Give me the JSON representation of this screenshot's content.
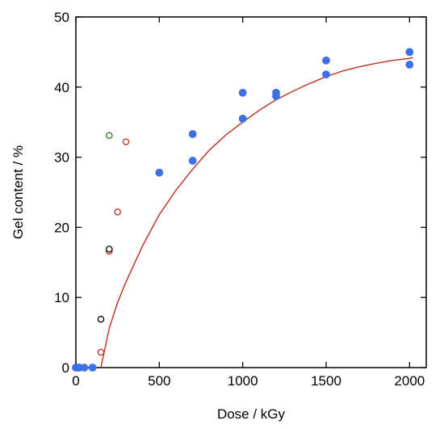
{
  "chart_data": {
    "type": "scatter",
    "xlabel": "Dose / kGy",
    "ylabel": "Gel content / %",
    "xlim": [
      0,
      2100
    ],
    "ylim": [
      0,
      50
    ],
    "x_ticks": [
      0,
      500,
      1000,
      1500,
      2000
    ],
    "y_ticks": [
      0,
      10,
      20,
      30,
      40,
      50
    ],
    "grid": false,
    "series": [
      {
        "marker": "filled-circle",
        "color": "#3d6fe6",
        "points": [
          [
            0,
            0
          ],
          [
            10,
            0
          ],
          [
            20,
            0
          ],
          [
            50,
            0
          ],
          [
            100,
            0
          ],
          [
            500,
            27.8
          ],
          [
            700,
            33.3
          ],
          [
            700,
            29.5
          ],
          [
            1000,
            39.2
          ],
          [
            1000,
            35.5
          ],
          [
            1200,
            39.2
          ],
          [
            1200,
            38.7
          ],
          [
            1500,
            43.8
          ],
          [
            1500,
            41.8
          ],
          [
            2000,
            45.0
          ],
          [
            2000,
            43.2
          ]
        ]
      },
      {
        "marker": "open-circle",
        "color": "#c0392b",
        "points": [
          [
            150,
            2.2
          ],
          [
            200,
            16.6
          ],
          [
            250,
            22.2
          ],
          [
            300,
            32.2
          ]
        ]
      },
      {
        "marker": "open-circle",
        "color": "#111111",
        "points": [
          [
            150,
            6.9
          ],
          [
            200,
            16.9
          ]
        ]
      },
      {
        "marker": "open-circle",
        "color": "#2e8b2e",
        "points": [
          [
            200,
            33.1
          ]
        ]
      }
    ],
    "fit_curve": {
      "color": "#c0392b",
      "points": [
        [
          150,
          0
        ],
        [
          200,
          5.6
        ],
        [
          250,
          9.3
        ],
        [
          300,
          12.2
        ],
        [
          400,
          17.4
        ],
        [
          500,
          21.8
        ],
        [
          600,
          25.3
        ],
        [
          700,
          28.3
        ],
        [
          800,
          31.0
        ],
        [
          900,
          33.2
        ],
        [
          1000,
          35.0
        ],
        [
          1100,
          36.7
        ],
        [
          1200,
          38.2
        ],
        [
          1300,
          39.4
        ],
        [
          1400,
          40.5
        ],
        [
          1500,
          41.5
        ],
        [
          1600,
          42.3
        ],
        [
          1700,
          42.9
        ],
        [
          1800,
          43.4
        ],
        [
          1900,
          43.8
        ],
        [
          2000,
          44.1
        ],
        [
          2020,
          44.2
        ]
      ]
    }
  }
}
